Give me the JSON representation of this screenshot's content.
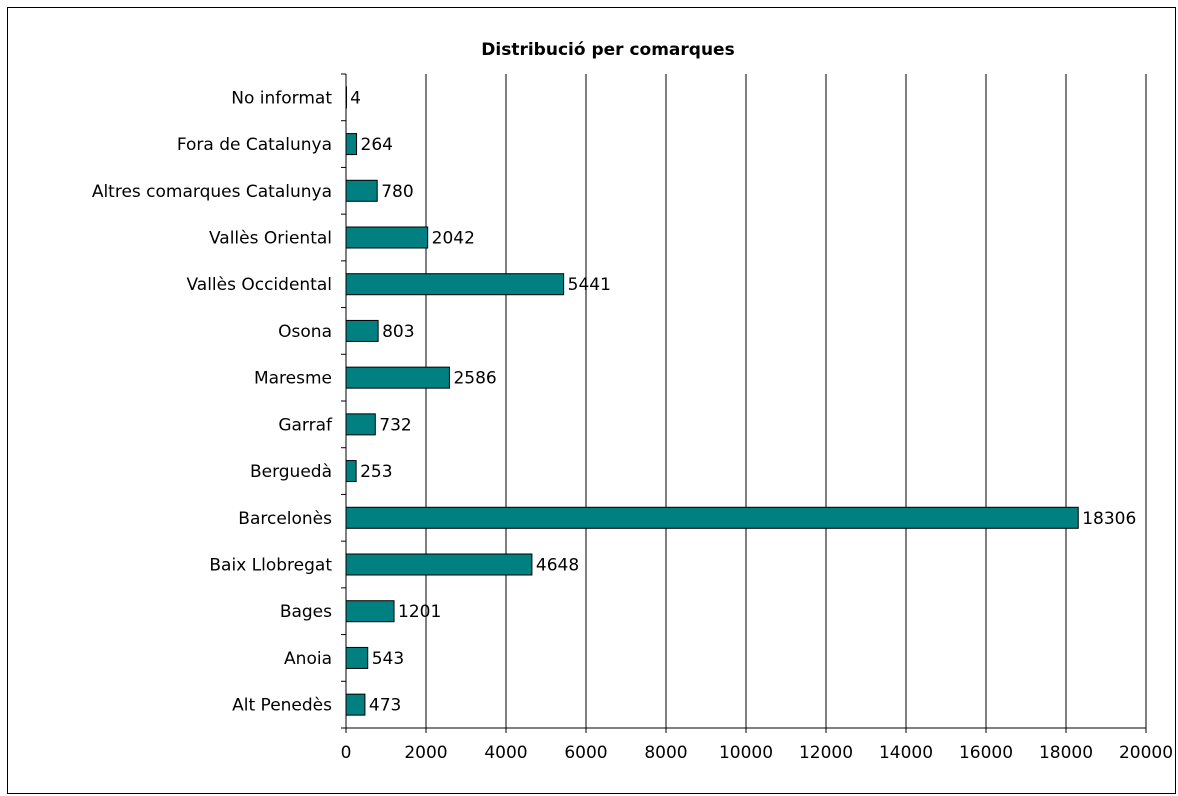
{
  "chart_data": {
    "type": "bar",
    "orientation": "horizontal",
    "title": "Distribució per comarques",
    "xlabel": "",
    "ylabel": "",
    "categories": [
      "No informat",
      "Fora de Catalunya",
      "Altres comarques Catalunya",
      "Vallès Oriental",
      "Vallès Occidental",
      "Osona",
      "Maresme",
      "Garraf",
      "Berguedà",
      "Barcelonès",
      "Baix Llobregat",
      "Bages",
      "Anoia",
      "Alt Penedès"
    ],
    "values": [
      4,
      264,
      780,
      2042,
      5441,
      803,
      2586,
      732,
      253,
      18306,
      4648,
      1201,
      543,
      473
    ],
    "value_labels": [
      "4",
      "264",
      "780",
      "2042",
      "5441",
      "803",
      "2586",
      "732",
      "253",
      "18306",
      "4648",
      "1201",
      "543",
      "473"
    ],
    "xlim": [
      0,
      20000
    ],
    "xticks": [
      0,
      2000,
      4000,
      6000,
      8000,
      10000,
      12000,
      14000,
      16000,
      18000,
      20000
    ],
    "xtick_labels": [
      "0",
      "2000",
      "4000",
      "6000",
      "8000",
      "10000",
      "12000",
      "14000",
      "16000",
      "18000",
      "20000"
    ],
    "grid": "vertical",
    "legend": "none",
    "colors": {
      "bar": "#008080",
      "bar_border": "#000000",
      "grid": "#000000"
    }
  }
}
